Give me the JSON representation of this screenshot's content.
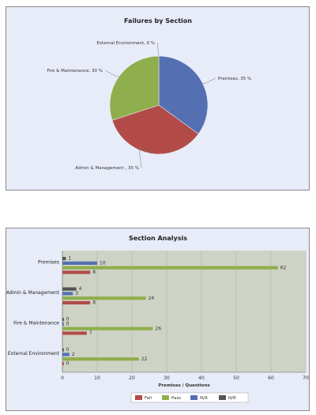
{
  "chart_data": [
    {
      "type": "pie",
      "title": "Failures by Section",
      "slices": [
        {
          "label": "External Environment, 0 %",
          "name": "External Environment",
          "value": 0,
          "color": "#8a8a8a"
        },
        {
          "label": "Premises, 35 %",
          "name": "Premises",
          "value": 35,
          "color": "#5470b3"
        },
        {
          "label": "Admin & Management , 35 %",
          "name": "Admin & Management",
          "value": 35,
          "color": "#b24b48"
        },
        {
          "label": "Fire & Maintenance, 30 %",
          "name": "Fire & Maintenance",
          "value": 30,
          "color": "#8fae4c"
        }
      ]
    },
    {
      "type": "bar",
      "orientation": "horizontal",
      "title": "Section Analysis",
      "xlabel": "Premises / Questions",
      "xlim": [
        0,
        70
      ],
      "xticks": [
        0,
        10,
        20,
        30,
        40,
        50,
        60,
        70
      ],
      "categories": [
        "Premises",
        "Admin & Management",
        "Fire & Maintenance",
        "External Environment"
      ],
      "series": [
        {
          "name": "N/R",
          "color": "#555555",
          "values": [
            1,
            4,
            0,
            0
          ]
        },
        {
          "name": "N/A",
          "color": "#5470b3",
          "values": [
            10,
            3,
            0,
            2
          ]
        },
        {
          "name": "Pass",
          "color": "#8fae4c",
          "values": [
            62,
            24,
            26,
            22
          ]
        },
        {
          "name": "Fail",
          "color": "#b24b48",
          "values": [
            8,
            8,
            7,
            0
          ]
        }
      ],
      "legend": [
        "Fail",
        "Pass",
        "N/A",
        "N/R"
      ],
      "legend_position": "bottom",
      "plot_background": "#cfd3c6"
    }
  ]
}
